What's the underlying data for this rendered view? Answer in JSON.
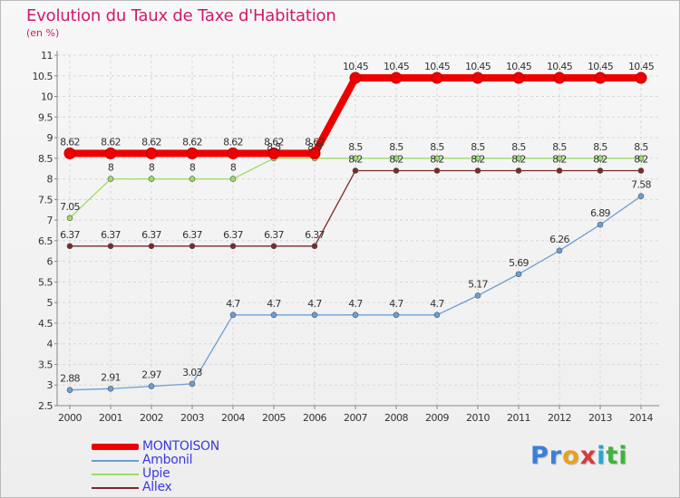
{
  "header": {
    "title": "Evolution du Taux de Taxe d'Habitation",
    "subtitle": "(en %)"
  },
  "colors": {
    "title": "#d2186c",
    "legend_text": "#3a3ae0",
    "axis": "#888888",
    "grid": "#d8d8d8"
  },
  "logo": {
    "letters": [
      {
        "char": "P",
        "color": "#3b7fd6"
      },
      {
        "char": "r",
        "color": "#3b7fd6"
      },
      {
        "char": "o",
        "color": "#e8a21c"
      },
      {
        "char": "x",
        "color": "#d63b3b"
      },
      {
        "char": "i",
        "color": "#2aa5cf"
      },
      {
        "char": "t",
        "color": "#3fb33f"
      },
      {
        "char": "i",
        "color": "#3fb33f"
      }
    ]
  },
  "chart_data": {
    "type": "line",
    "title": "Evolution du Taux de Taxe d'Habitation",
    "subtitle": "(en %)",
    "x": [
      2000,
      2001,
      2002,
      2003,
      2004,
      2005,
      2006,
      2007,
      2008,
      2009,
      2010,
      2011,
      2012,
      2013,
      2014
    ],
    "ylim": [
      2.5,
      11
    ],
    "yticks": [
      "2.5",
      "3",
      "3.5",
      "4",
      "4.5",
      "5",
      "5.5",
      "6",
      "6.5",
      "7",
      "7.5",
      "8",
      "8.5",
      "9",
      "9.5",
      "10",
      "10.5",
      "11"
    ],
    "grid": true,
    "legend_position": "bottom-left",
    "series": [
      {
        "name": "MONTOISON",
        "color": "#ee0000",
        "values": [
          8.62,
          8.62,
          8.62,
          8.62,
          8.62,
          8.62,
          8.62,
          10.45,
          10.45,
          10.45,
          10.45,
          10.45,
          10.45,
          10.45,
          10.45
        ],
        "labels": [
          "8.62",
          "8.62",
          "8.62",
          "8.62",
          "8.62",
          "8.62",
          "8.62",
          "10.45",
          "10.45",
          "10.45",
          "10.45",
          "10.45",
          "10.45",
          "10.45",
          "10.45"
        ]
      },
      {
        "name": "Ambonil",
        "color": "#6a9fd4",
        "values": [
          2.88,
          2.91,
          2.97,
          3.03,
          4.7,
          4.7,
          4.7,
          4.7,
          4.7,
          4.7,
          5.17,
          5.69,
          6.26,
          6.89,
          7.58
        ],
        "labels": [
          "2.88",
          "2.91",
          "2.97",
          "3.03",
          "4.7",
          "4.7",
          "4.7",
          "4.7",
          "4.7",
          "4.7",
          "5.17",
          "5.69",
          "6.26",
          "6.89",
          "7.58"
        ]
      },
      {
        "name": "Upie",
        "color": "#99dd66",
        "values": [
          7.05,
          8,
          8,
          8,
          8,
          8.5,
          8.5,
          8.5,
          8.5,
          8.5,
          8.5,
          8.5,
          8.5,
          8.5,
          8.5
        ],
        "labels": [
          "7.05",
          "8",
          "8",
          "8",
          "8",
          "8.5",
          "8.5",
          "8.5",
          "8.5",
          "8.5",
          "8.5",
          "8.5",
          "8.5",
          "8.5",
          "8.5"
        ]
      },
      {
        "name": "Allex",
        "color": "#7a2a2a",
        "values": [
          6.37,
          6.37,
          6.37,
          6.37,
          6.37,
          6.37,
          6.37,
          8.2,
          8.2,
          8.2,
          8.2,
          8.2,
          8.2,
          8.2,
          8.2
        ],
        "labels": [
          "6.37",
          "6.37",
          "6.37",
          "6.37",
          "6.37",
          "6.37",
          "6.37",
          "8.2",
          "8.2",
          "8.2",
          "8.2",
          "8.2",
          "8.2",
          "8.2",
          "8.2"
        ]
      }
    ]
  }
}
